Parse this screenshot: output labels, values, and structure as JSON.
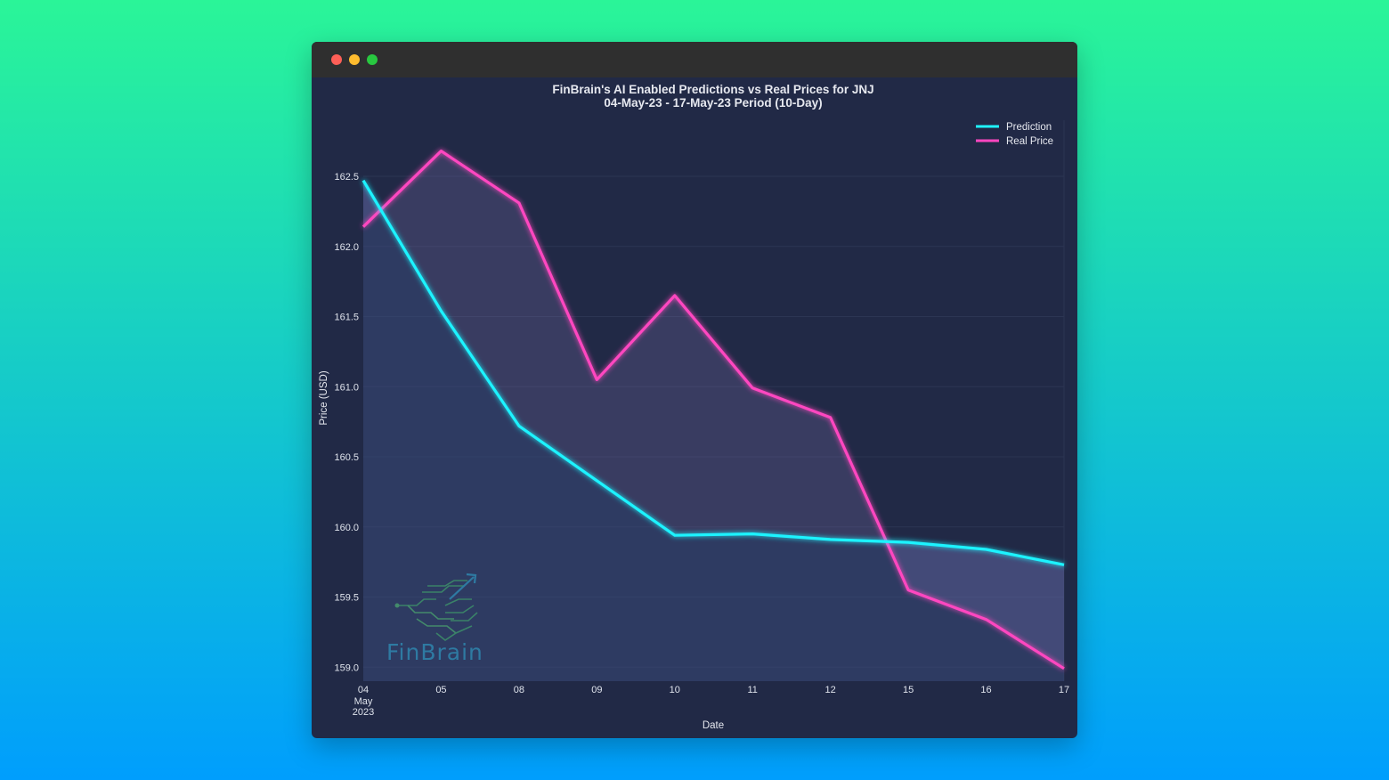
{
  "window": {
    "controls": [
      "close",
      "minimize",
      "maximize"
    ]
  },
  "colors": {
    "prediction": "#1ff3ff",
    "real": "#ff46c0",
    "background": "#212946",
    "grid": "#2c3553"
  },
  "chart_data": {
    "type": "line",
    "title": "FinBrain's AI Enabled Predictions vs Real Prices for JNJ",
    "subtitle": "04-May-23 - 17-May-23 Period (10-Day)",
    "xlabel": "Date",
    "ylabel": "Price (USD)",
    "categories": [
      "04",
      "05",
      "08",
      "09",
      "10",
      "11",
      "12",
      "15",
      "16",
      "17"
    ],
    "first_tick_extra": [
      "May",
      "2023"
    ],
    "x_positions": [
      4,
      5,
      8,
      9,
      10,
      11,
      12,
      15,
      16,
      17
    ],
    "ylim": [
      158.9,
      162.9
    ],
    "yticks": [
      "159.0",
      "159.5",
      "160.0",
      "160.5",
      "161.0",
      "161.5",
      "162.0",
      "162.5"
    ],
    "ytick_values": [
      159.0,
      159.5,
      160.0,
      160.5,
      161.0,
      161.5,
      162.0,
      162.5
    ],
    "legend": "top-right",
    "series": [
      {
        "name": "Prediction",
        "values": [
          162.47,
          161.54,
          160.72,
          160.33,
          159.94,
          159.95,
          159.91,
          159.89,
          159.84,
          159.73
        ]
      },
      {
        "name": "Real Price",
        "values": [
          162.14,
          162.68,
          162.31,
          161.05,
          161.65,
          160.99,
          160.78,
          159.55,
          159.34,
          158.99
        ]
      }
    ],
    "watermark": "FinBrain"
  }
}
